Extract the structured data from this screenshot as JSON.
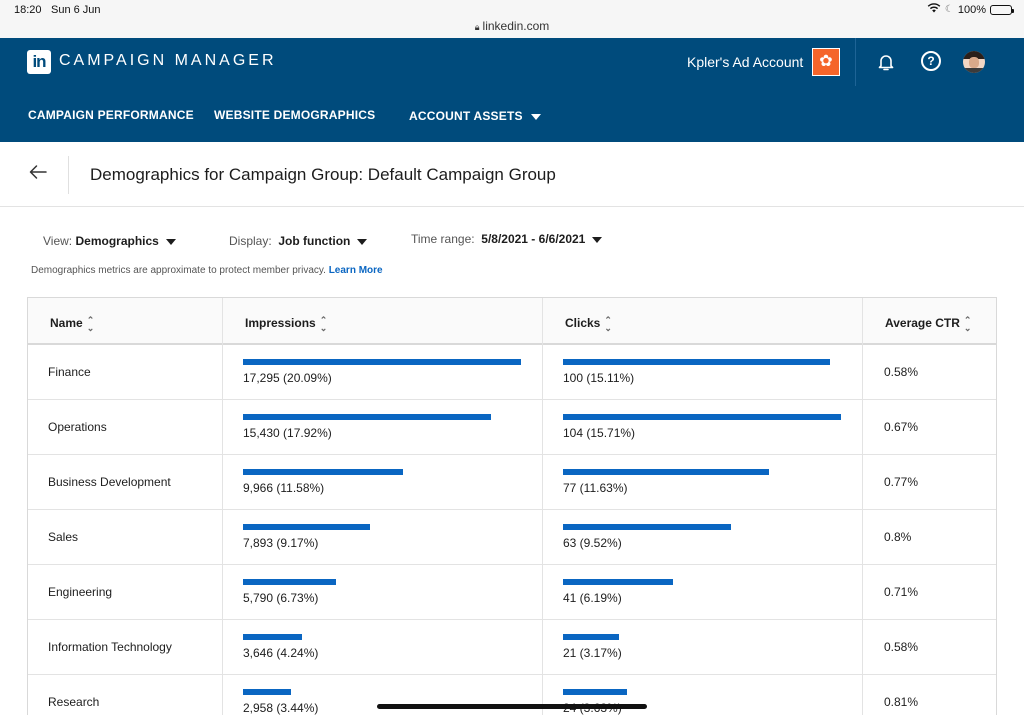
{
  "status": {
    "time": "18:20",
    "date": "Sun 6 Jun",
    "battery": "100%",
    "url": "linkedin.com"
  },
  "header": {
    "app_title": "CAMPAIGN MANAGER",
    "logo_text": "in",
    "account_name": "Kpler's Ad Account",
    "brand_color": "#004b7c",
    "account_icon_color": "#f5652a"
  },
  "nav": {
    "items": [
      {
        "label": "CAMPAIGN PERFORMANCE"
      },
      {
        "label": "WEBSITE DEMOGRAPHICS"
      },
      {
        "label": "ACCOUNT ASSETS"
      }
    ]
  },
  "page": {
    "title": "Demographics for Campaign Group: Default Campaign Group"
  },
  "filters": {
    "view": {
      "label": "View:",
      "value": "Demographics"
    },
    "display": {
      "label": "Display:",
      "value": "Job function"
    },
    "time_range": {
      "label": "Time range:",
      "value": "5/8/2021 - 6/6/2021"
    }
  },
  "privacy": {
    "text": "Demographics metrics are approximate to protect member privacy.",
    "link": "Learn More"
  },
  "table": {
    "columns": [
      "Name",
      "Impressions",
      "Clicks",
      "Average CTR"
    ],
    "bar_color": "#0a66c2",
    "rows": [
      {
        "name": "Finance",
        "impressions": "17,295 (20.09%)",
        "impressions_share": 20.09,
        "clicks": "100 (15.11%)",
        "clicks_share": 15.11,
        "ctr": "0.58%"
      },
      {
        "name": "Operations",
        "impressions": "15,430 (17.92%)",
        "impressions_share": 17.92,
        "clicks": "104 (15.71%)",
        "clicks_share": 15.71,
        "ctr": "0.67%"
      },
      {
        "name": "Business Development",
        "impressions": "9,966 (11.58%)",
        "impressions_share": 11.58,
        "clicks": "77 (11.63%)",
        "clicks_share": 11.63,
        "ctr": "0.77%"
      },
      {
        "name": "Sales",
        "impressions": "7,893 (9.17%)",
        "impressions_share": 9.17,
        "clicks": "63 (9.52%)",
        "clicks_share": 9.52,
        "ctr": "0.8%"
      },
      {
        "name": "Engineering",
        "impressions": "5,790 (6.73%)",
        "impressions_share": 6.73,
        "clicks": "41 (6.19%)",
        "clicks_share": 6.19,
        "ctr": "0.71%"
      },
      {
        "name": "Information Technology",
        "impressions": "3,646 (4.24%)",
        "impressions_share": 4.24,
        "clicks": "21 (3.17%)",
        "clicks_share": 3.17,
        "ctr": "0.58%"
      },
      {
        "name": "Research",
        "impressions": "2,958 (3.44%)",
        "impressions_share": 3.44,
        "clicks": "24 (3.63%)",
        "clicks_share": 3.63,
        "ctr": "0.81%"
      }
    ]
  }
}
